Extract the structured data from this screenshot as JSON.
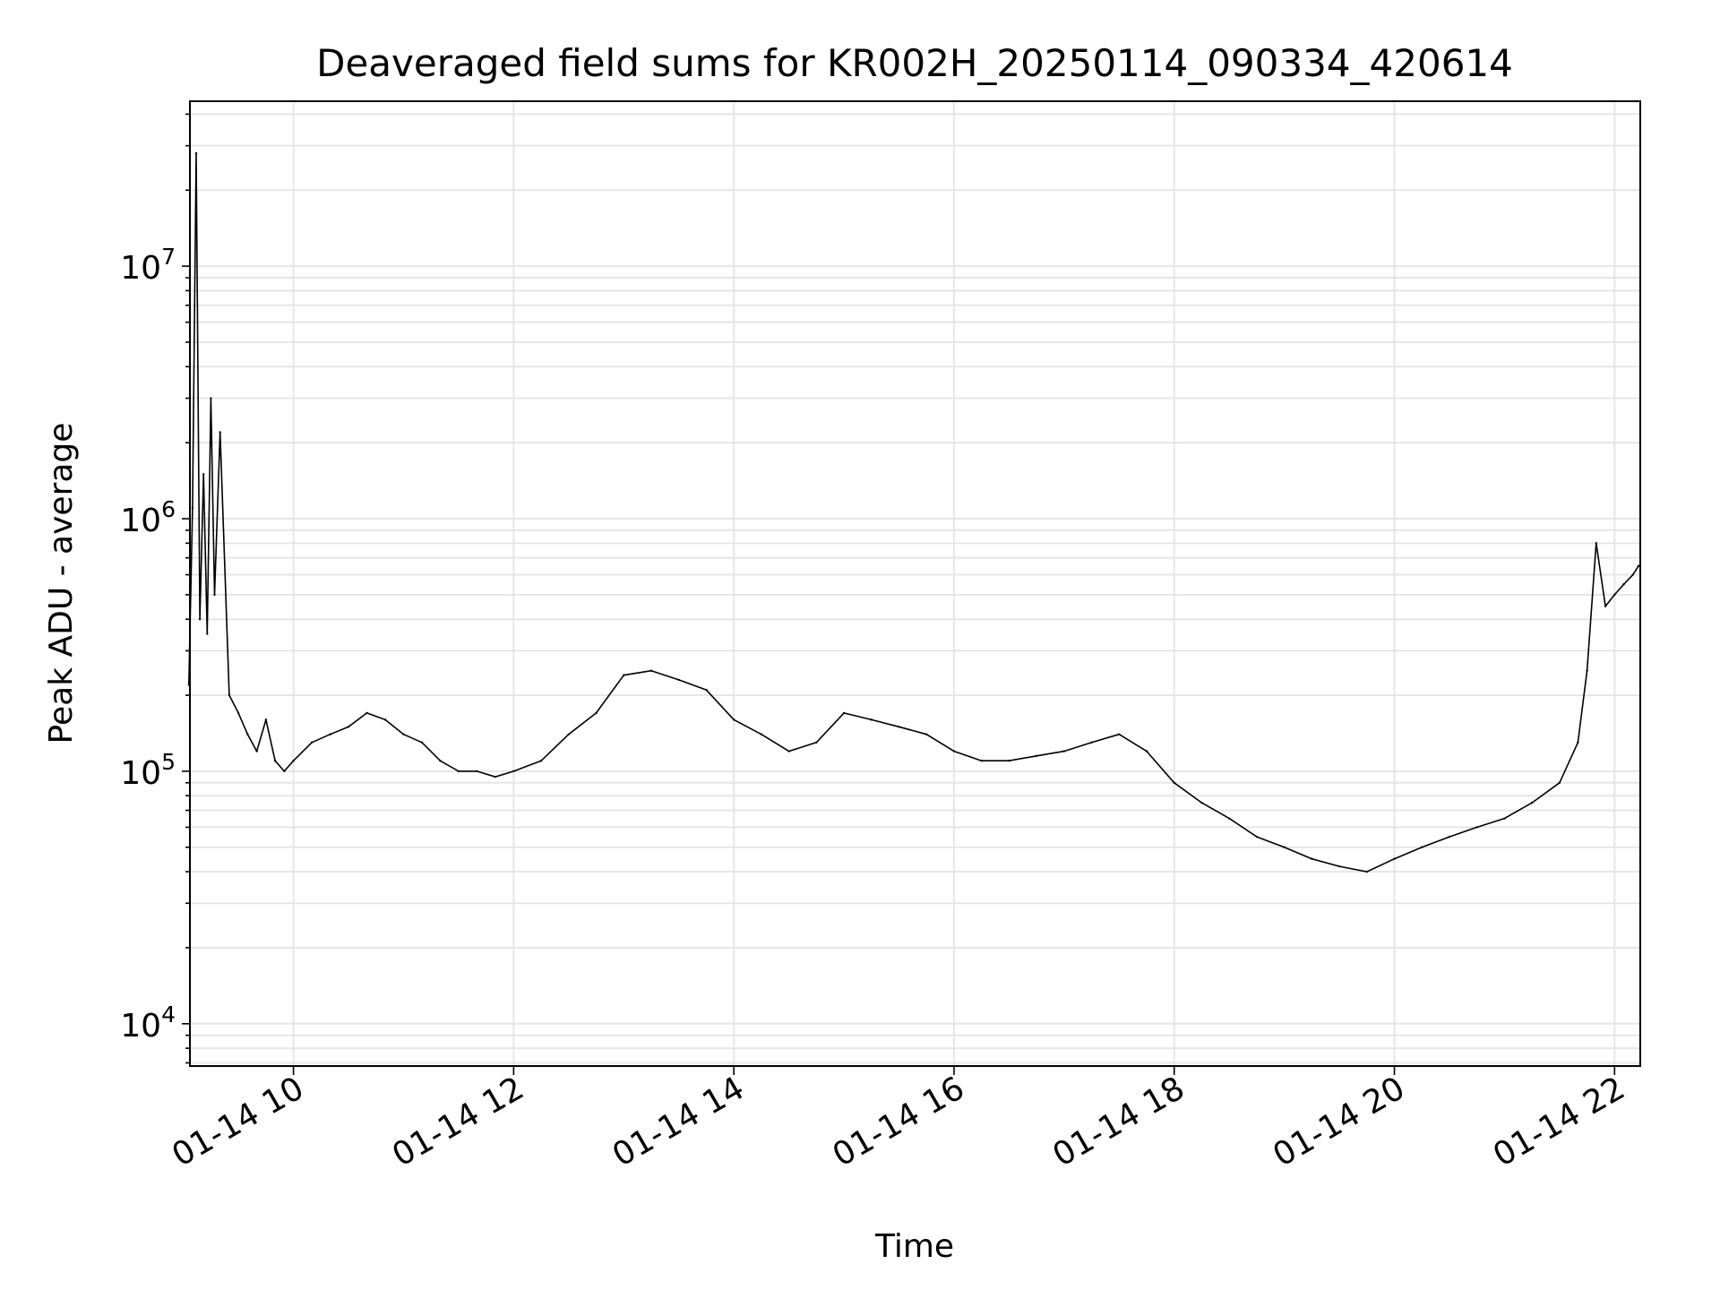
{
  "chart_data": {
    "type": "line",
    "title": "Deaveraged field sums for KR002H_20250114_090334_420614",
    "xlabel": "Time",
    "ylabel": "Peak ADU - average",
    "yscale": "log",
    "xlim": [
      "2025-01-14T09:03:34",
      "2025-01-14T22:14:00"
    ],
    "ylim": [
      6800,
      45000000
    ],
    "grid": true,
    "x_ticks": [
      {
        "value": "2025-01-14T10:00",
        "label": "01-14 10"
      },
      {
        "value": "2025-01-14T12:00",
        "label": "01-14 12"
      },
      {
        "value": "2025-01-14T14:00",
        "label": "01-14 14"
      },
      {
        "value": "2025-01-14T16:00",
        "label": "01-14 16"
      },
      {
        "value": "2025-01-14T18:00",
        "label": "01-14 18"
      },
      {
        "value": "2025-01-14T20:00",
        "label": "01-14 20"
      },
      {
        "value": "2025-01-14T22:00",
        "label": "01-14 22"
      }
    ],
    "y_ticks": [
      {
        "value": 10000,
        "base": "10",
        "exp": "4"
      },
      {
        "value": 100000,
        "base": "10",
        "exp": "5"
      },
      {
        "value": 1000000,
        "base": "10",
        "exp": "6"
      },
      {
        "value": 10000000,
        "base": "10",
        "exp": "7"
      }
    ],
    "series_color": "#000000",
    "series": [
      {
        "x": [
          "09:03",
          "09:05",
          "09:07",
          "09:09",
          "09:11",
          "09:13",
          "09:15",
          "09:17",
          "09:20",
          "09:25",
          "09:30",
          "09:35",
          "09:40",
          "09:45",
          "09:50",
          "09:55",
          "10:00",
          "10:10",
          "10:20",
          "10:30",
          "10:40",
          "10:50",
          "11:00",
          "11:10",
          "11:20",
          "11:30",
          "11:40",
          "11:50",
          "12:00",
          "12:15",
          "12:30",
          "12:45",
          "13:00",
          "13:15",
          "13:30",
          "13:45",
          "14:00",
          "14:15",
          "14:30",
          "14:45",
          "15:00",
          "15:15",
          "15:30",
          "15:45",
          "16:00",
          "16:15",
          "16:30",
          "16:45",
          "17:00",
          "17:15",
          "17:30",
          "17:45",
          "18:00",
          "18:15",
          "18:30",
          "18:45",
          "19:00",
          "19:15",
          "19:30",
          "19:45",
          "20:00",
          "20:15",
          "20:30",
          "20:45",
          "21:00",
          "21:15",
          "21:30",
          "21:40",
          "21:45",
          "21:50",
          "21:55",
          "22:00",
          "22:05",
          "22:10",
          "22:13"
        ],
        "y": [
          220000,
          1100000,
          28000000,
          400000,
          1500000,
          350000,
          3000000,
          500000,
          2200000,
          200000,
          170000,
          140000,
          120000,
          160000,
          110000,
          100000,
          110000,
          130000,
          140000,
          150000,
          170000,
          160000,
          140000,
          130000,
          110000,
          100000,
          100000,
          95000,
          100000,
          110000,
          140000,
          170000,
          240000,
          250000,
          230000,
          210000,
          160000,
          140000,
          120000,
          130000,
          170000,
          160000,
          150000,
          140000,
          120000,
          110000,
          110000,
          115000,
          120000,
          130000,
          140000,
          120000,
          90000,
          75000,
          65000,
          55000,
          50000,
          45000,
          42000,
          40000,
          45000,
          50000,
          55000,
          60000,
          65000,
          75000,
          90000,
          130000,
          250000,
          800000,
          450000,
          500000,
          550000,
          600000,
          650000
        ]
      }
    ]
  }
}
